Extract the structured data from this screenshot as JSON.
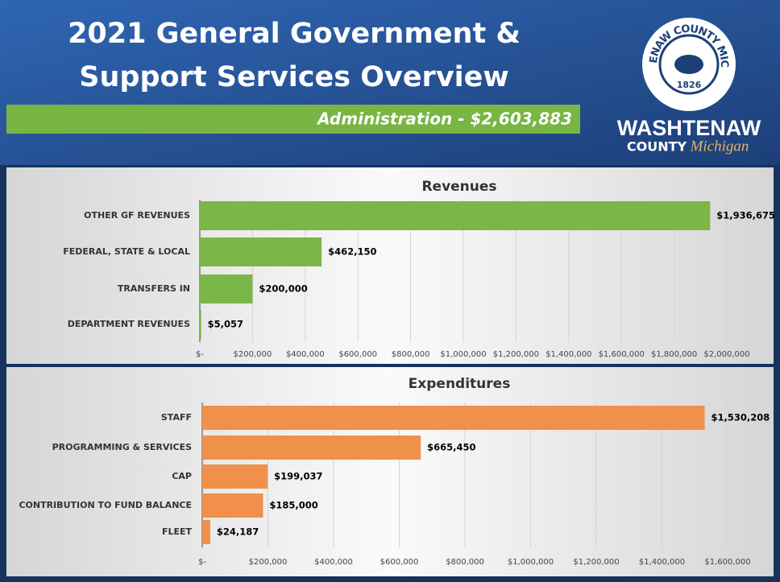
{
  "header": {
    "title": [
      "2021 General Government &",
      "Support Services Overview"
    ],
    "subtitle": "Administration - $2,603,883",
    "logo": {
      "seal_ring": "WASHTENAW COUNTY MICHIGAN",
      "seal_year": "1826",
      "name": "WASHTENAW",
      "county": "COUNTY",
      "state": "Michigan"
    }
  },
  "chart_data": [
    {
      "type": "bar",
      "orientation": "horizontal",
      "title": "Revenues",
      "categories": [
        "OTHER GF REVENUES",
        "FEDERAL, STATE & LOCAL",
        "TRANSFERS IN",
        "DEPARTMENT REVENUES"
      ],
      "values": [
        1936675,
        462150,
        200000,
        5057
      ],
      "value_labels": [
        "$1,936,675",
        "$462,150",
        "$200,000",
        "$5,057"
      ],
      "color": "#7ab648",
      "grid": true,
      "xlim": [
        0,
        2000000
      ],
      "xticks": [
        {
          "value": 0,
          "label": "$-"
        },
        {
          "value": 200000,
          "label": "$200,000"
        },
        {
          "value": 400000,
          "label": "$400,000"
        },
        {
          "value": 600000,
          "label": "$600,000"
        },
        {
          "value": 800000,
          "label": "$800,000"
        },
        {
          "value": 1000000,
          "label": "$1,000,000"
        },
        {
          "value": 1200000,
          "label": "$1,200,000"
        },
        {
          "value": 1400000,
          "label": "$1,400,000"
        },
        {
          "value": 1600000,
          "label": "$1,600,000"
        },
        {
          "value": 1800000,
          "label": "$1,800,000"
        },
        {
          "value": 2000000,
          "label": "$2,000,000"
        }
      ]
    },
    {
      "type": "bar",
      "orientation": "horizontal",
      "title": "Expenditures",
      "categories": [
        "STAFF",
        "PROGRAMMING & SERVICES",
        "CAP",
        "CONTRIBUTION TO FUND BALANCE",
        "FLEET"
      ],
      "values": [
        1530208,
        665450,
        199037,
        185000,
        24187
      ],
      "value_labels": [
        "$1,530,208",
        "$665,450",
        "$199,037",
        "$185,000",
        "$24,187"
      ],
      "color": "#f0904a",
      "grid": true,
      "xlim": [
        0,
        1600000
      ],
      "xticks": [
        {
          "value": 0,
          "label": "$-"
        },
        {
          "value": 200000,
          "label": "$200,000"
        },
        {
          "value": 400000,
          "label": "$400,000"
        },
        {
          "value": 600000,
          "label": "$600,000"
        },
        {
          "value": 800000,
          "label": "$800,000"
        },
        {
          "value": 1000000,
          "label": "$1,000,000"
        },
        {
          "value": 1200000,
          "label": "$1,200,000"
        },
        {
          "value": 1400000,
          "label": "$1,400,000"
        },
        {
          "value": 1600000,
          "label": "$1,600,000"
        }
      ]
    }
  ]
}
